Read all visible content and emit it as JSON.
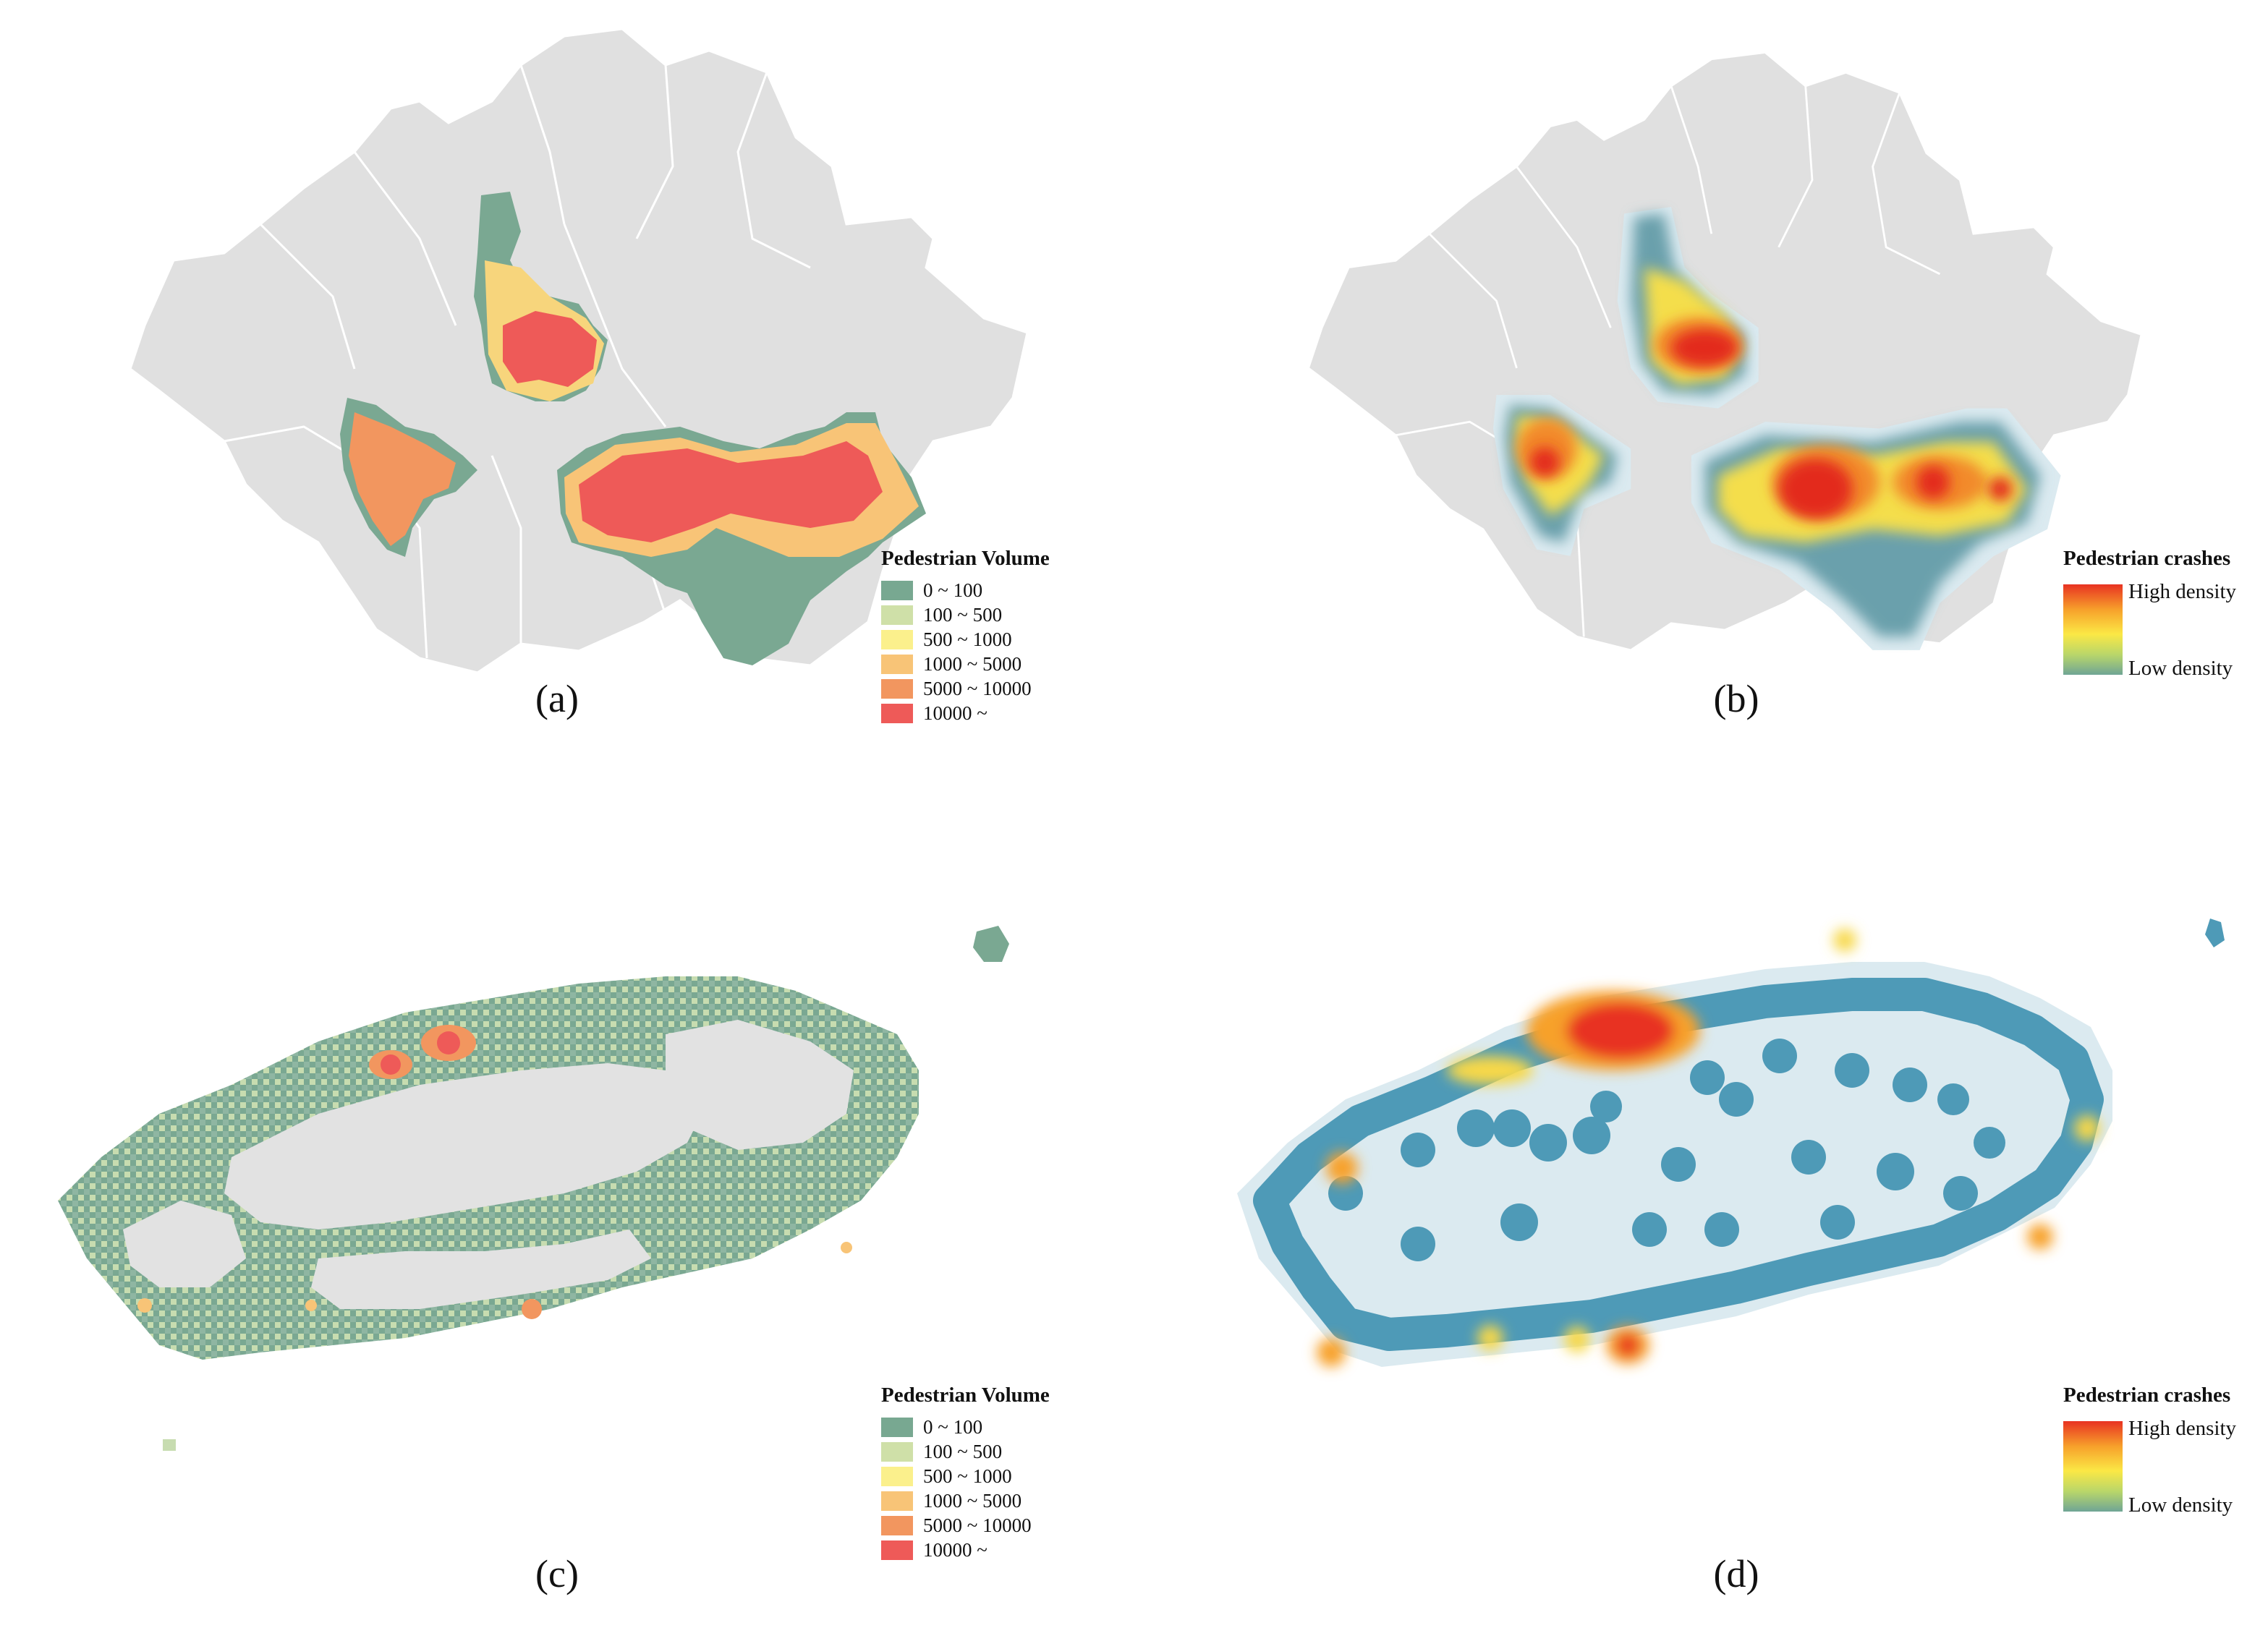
{
  "panels": [
    {
      "id": "a",
      "caption": "(a)"
    },
    {
      "id": "b",
      "caption": "(b)"
    },
    {
      "id": "c",
      "caption": "(c)"
    },
    {
      "id": "d",
      "caption": "(d)"
    }
  ],
  "legend_volume": {
    "title": "Pedestrian Volume",
    "classes": [
      {
        "label": "0 ~ 100",
        "color": "#78a891"
      },
      {
        "label": "100 ~ 500",
        "color": "#cfe0a8"
      },
      {
        "label": "500 ~ 1000",
        "color": "#fbf08c"
      },
      {
        "label": "1000 ~ 5000",
        "color": "#f8c477"
      },
      {
        "label": "5000 ~ 10000",
        "color": "#f2965f"
      },
      {
        "label": "10000 ~",
        "color": "#ee5a58"
      }
    ]
  },
  "legend_crashes": {
    "title": "Pedestrian crashes",
    "high": "High density",
    "low": "Low density",
    "colors": [
      "#e83222",
      "#f7a12b",
      "#fbe845",
      "#b8d66a",
      "#6fa595"
    ]
  },
  "map_colors": {
    "land": "#e0e0e0",
    "district_border": "#ffffff",
    "density_low": "#4e9ab7",
    "density_halo": "#dfeef4"
  }
}
